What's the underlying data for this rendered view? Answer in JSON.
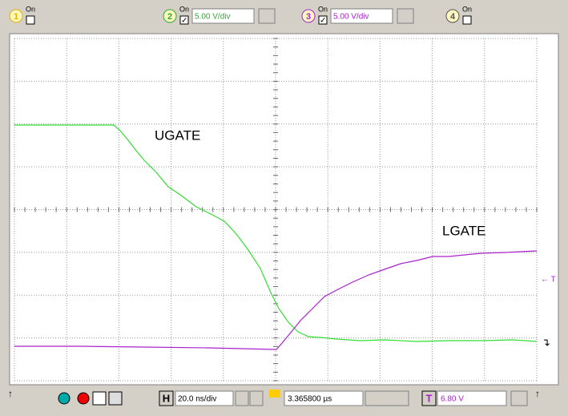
{
  "channels": [
    {
      "number": "1",
      "state": "On"
    },
    {
      "number": "2",
      "state": "On",
      "scale": "5.00 V/div"
    },
    {
      "number": "3",
      "state": "On",
      "scale": "5.00 V/div"
    },
    {
      "number": "4",
      "state": "On"
    }
  ],
  "traces": {
    "ugate": "UGATE",
    "lgate": "LGATE"
  },
  "trigger_marker": "← T",
  "timebase": {
    "label": "H",
    "scale": "20.0 ns/div",
    "position": "3.365800 µs"
  },
  "trigger": {
    "label": "T",
    "level": "6.80 V"
  }
}
